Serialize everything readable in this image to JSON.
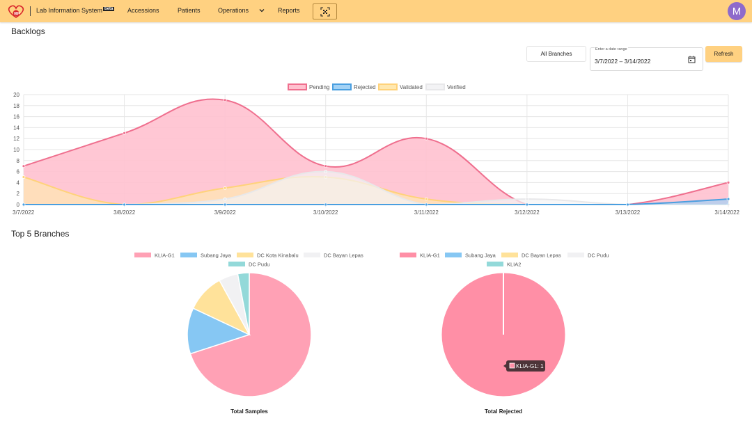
{
  "header": {
    "app_title": "Lab Information System",
    "beta_badge": "beta",
    "nav": {
      "accessions": "Accessions",
      "patients": "Patients",
      "operations": "Operations",
      "reports": "Reports"
    },
    "avatar_letter": "M",
    "avatar_color": "#8e6acb",
    "bar_color": "#ffd181",
    "icons": [
      "logo-icon",
      "chevron-down-icon",
      "scan-icon"
    ]
  },
  "backlogs": {
    "title": "Backlogs",
    "branch_button": "All Branches",
    "date_label": "Enter a date range",
    "date_value": "3/7/2022 – 3/14/2022",
    "refresh_label": "Refresh"
  },
  "top_branches": {
    "title": "Top 5 Branches"
  },
  "chart_data": [
    {
      "type": "area",
      "ylim": [
        0,
        20
      ],
      "yticks": [
        0,
        2,
        4,
        6,
        8,
        10,
        12,
        14,
        16,
        18,
        20
      ],
      "categories": [
        "3/7/2022",
        "3/8/2022",
        "3/9/2022",
        "3/10/2022",
        "3/11/2022",
        "3/12/2022",
        "3/13/2022",
        "3/14/2022"
      ],
      "grid": true,
      "legend_position": "top",
      "series": [
        {
          "name": "Pending",
          "color": "#ef6f8e",
          "fill": "#ffc1cf",
          "values": [
            7,
            13,
            19,
            7,
            12,
            0,
            0,
            4
          ]
        },
        {
          "name": "Rejected",
          "color": "#4a9fe0",
          "fill": "#a3d2f5",
          "values": [
            0,
            0,
            0,
            0,
            0,
            0,
            0,
            1
          ]
        },
        {
          "name": "Validated",
          "color": "#ffd27a",
          "fill": "#ffe8b0",
          "values": [
            5,
            0,
            3,
            5,
            1,
            0,
            0,
            0
          ]
        },
        {
          "name": "Verified",
          "color": "#e8e8ea",
          "fill": "#f3f3f5",
          "values": [
            0,
            0,
            1,
            6,
            0,
            1,
            0,
            0
          ]
        }
      ]
    },
    {
      "type": "pie",
      "title": "Total Samples",
      "legend_position": "top",
      "labels": [
        "KLIA-G1",
        "Subang Jaya",
        "DC Kota Kinabalu",
        "DC Bayan Lepas",
        "DC Pudu"
      ],
      "values": [
        70,
        12,
        10,
        5,
        3
      ],
      "colors": [
        "#ffa1b5",
        "#86c7f3",
        "#ffe29a",
        "#f1f1f3",
        "#93d9d9"
      ]
    },
    {
      "type": "pie",
      "title": "Total Rejected",
      "legend_position": "top",
      "labels": [
        "KLIA-G1",
        "Subang Jaya",
        "DC Bayan Lepas",
        "DC Pudu",
        "KLIA2"
      ],
      "values": [
        1,
        0,
        0,
        0,
        0
      ],
      "colors": [
        "#ff8fa6",
        "#86c7f3",
        "#ffe29a",
        "#f1f1f3",
        "#93d9d9"
      ],
      "tooltip": "KLIA-G1: 1"
    }
  ]
}
